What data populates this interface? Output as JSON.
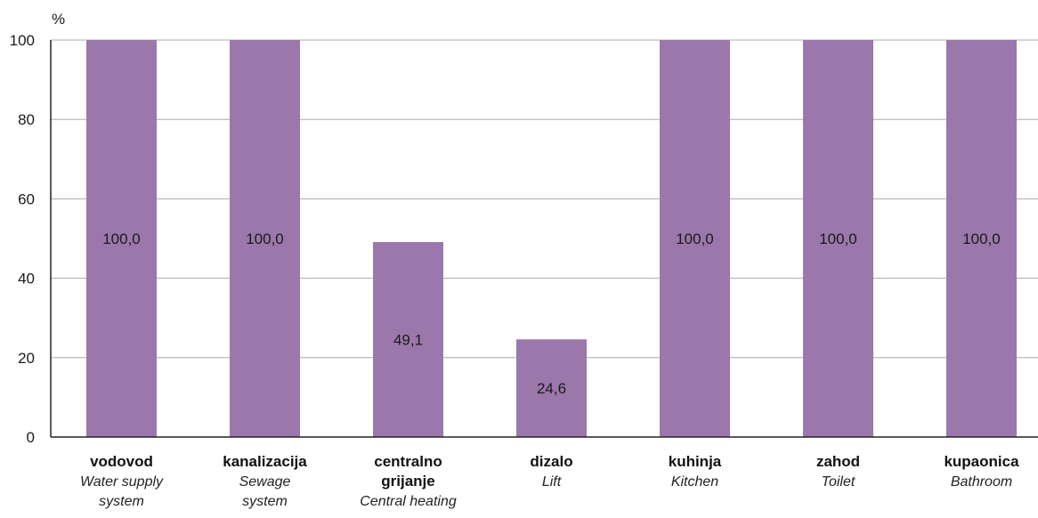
{
  "chart_data": {
    "type": "bar",
    "unit_label": "%",
    "ylim": [
      0,
      100
    ],
    "yticks": [
      0,
      20,
      40,
      60,
      80,
      100
    ],
    "grid": true,
    "bar_color": "#9b77ab",
    "grid_color": "#a8a8a8",
    "categories": [
      {
        "lines": [
          "vodovod"
        ],
        "en": [
          "Water supply",
          "system"
        ],
        "value": 100.0,
        "value_label": "100,0"
      },
      {
        "lines": [
          "kanalizacija"
        ],
        "en": [
          "Sewage",
          "system"
        ],
        "value": 100.0,
        "value_label": "100,0"
      },
      {
        "lines": [
          "centralno",
          "grijanje"
        ],
        "en": [
          "Central heating"
        ],
        "value": 49.1,
        "value_label": "49,1"
      },
      {
        "lines": [
          "dizalo"
        ],
        "en": [
          "Lift"
        ],
        "value": 24.6,
        "value_label": "24,6"
      },
      {
        "lines": [
          "kuhinja"
        ],
        "en": [
          "Kitchen"
        ],
        "value": 100.0,
        "value_label": "100,0"
      },
      {
        "lines": [
          "zahod"
        ],
        "en": [
          "Toilet"
        ],
        "value": 100.0,
        "value_label": "100,0"
      },
      {
        "lines": [
          "kupaonica"
        ],
        "en": [
          "Bathroom"
        ],
        "value": 100.0,
        "value_label": "100,0"
      }
    ]
  }
}
